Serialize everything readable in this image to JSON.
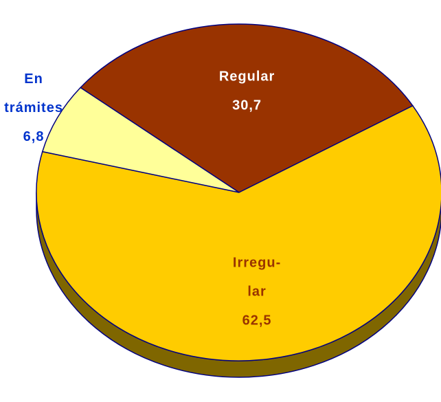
{
  "chart_data": {
    "type": "pie",
    "categories": [
      [
        "Regular"
      ],
      [
        "Irregu-",
        "lar"
      ],
      [
        "En",
        "trámites"
      ]
    ],
    "values": [
      30.7,
      62.5,
      6.8
    ],
    "value_labels": [
      "30,7",
      "62,5",
      "6,8"
    ],
    "colors": [
      "#993300",
      "#ffcc00",
      "#ffff99"
    ]
  }
}
